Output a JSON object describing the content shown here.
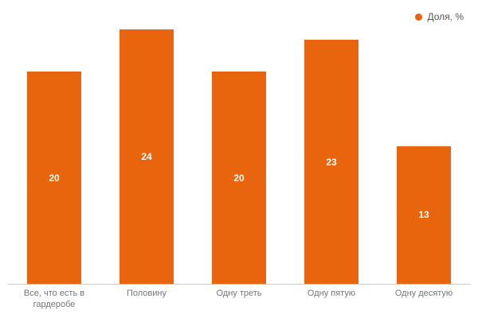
{
  "chart_data": {
    "type": "bar",
    "categories": [
      "Все, что есть в гардеробе",
      "Половину",
      "Одну треть",
      "Одну пятую",
      "Одну десятую"
    ],
    "values": [
      20,
      24,
      20,
      23,
      13
    ],
    "title": "",
    "xlabel": "",
    "ylabel": "",
    "ylim": [
      0,
      26
    ],
    "grid": false,
    "legend_position": "top-right",
    "bar_color": "#e8650e",
    "value_label_color": "#ffffff",
    "axis_line_color": "#cccccc",
    "tick_label_color": "#757575",
    "legend": [
      {
        "label": "Доля, %",
        "color": "#e8650e"
      }
    ]
  }
}
